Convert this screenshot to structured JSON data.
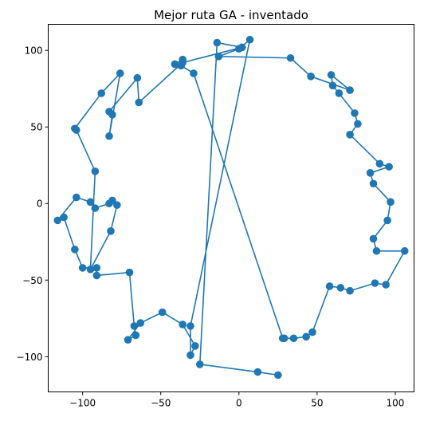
{
  "chart_data": {
    "type": "line",
    "title": "Mejor ruta GA - inventado",
    "xlabel": "",
    "ylabel": "",
    "xlim": [
      -122,
      112
    ],
    "ylim": [
      -123,
      117
    ],
    "xticks": [
      -100,
      -50,
      0,
      50,
      100
    ],
    "yticks": [
      -100,
      -50,
      0,
      50,
      100
    ],
    "grid": false,
    "legend": null,
    "series": [
      {
        "color": "#1f77b4",
        "marker": "circle",
        "x": [
          -41,
          -36,
          -37,
          -29,
          28,
          29,
          35,
          43,
          47,
          58,
          65,
          71,
          87,
          94,
          106,
          88,
          86,
          95,
          97,
          86,
          84,
          96,
          90,
          71,
          76,
          74,
          64,
          60,
          59,
          71,
          46,
          33,
          -13,
          0,
          7,
          -31,
          -31,
          -28,
          -36,
          -49,
          -63,
          -71,
          -66,
          -67,
          -70,
          -91,
          -91,
          -100,
          -105,
          -112,
          -116,
          -104,
          -95,
          -92,
          -83,
          -81,
          -78,
          -82,
          -95,
          -92,
          -104,
          -105,
          -88,
          -76,
          -83,
          -81,
          -83,
          -65,
          -64,
          -36,
          2,
          -14,
          -25,
          12,
          25
        ],
        "y": [
          91,
          94,
          90,
          85,
          -88,
          -88,
          -88,
          -87,
          -84,
          -54,
          -55,
          -57,
          -52,
          -53,
          -31,
          -31,
          -23,
          -11,
          1,
          13,
          20,
          24,
          26,
          45,
          52,
          59,
          72,
          77,
          84,
          74,
          83,
          95,
          96,
          101,
          107,
          -80,
          -99,
          -93,
          -79,
          -71,
          -78,
          -89,
          -86,
          -80,
          -45,
          -47,
          -42,
          -42,
          -30,
          -9,
          -11,
          4,
          1,
          -3,
          0,
          2,
          -1,
          -18,
          -43,
          21,
          48,
          49,
          72,
          85,
          44,
          58,
          60,
          82,
          66,
          92,
          102,
          105,
          -105,
          -110,
          -112
        ]
      }
    ]
  }
}
